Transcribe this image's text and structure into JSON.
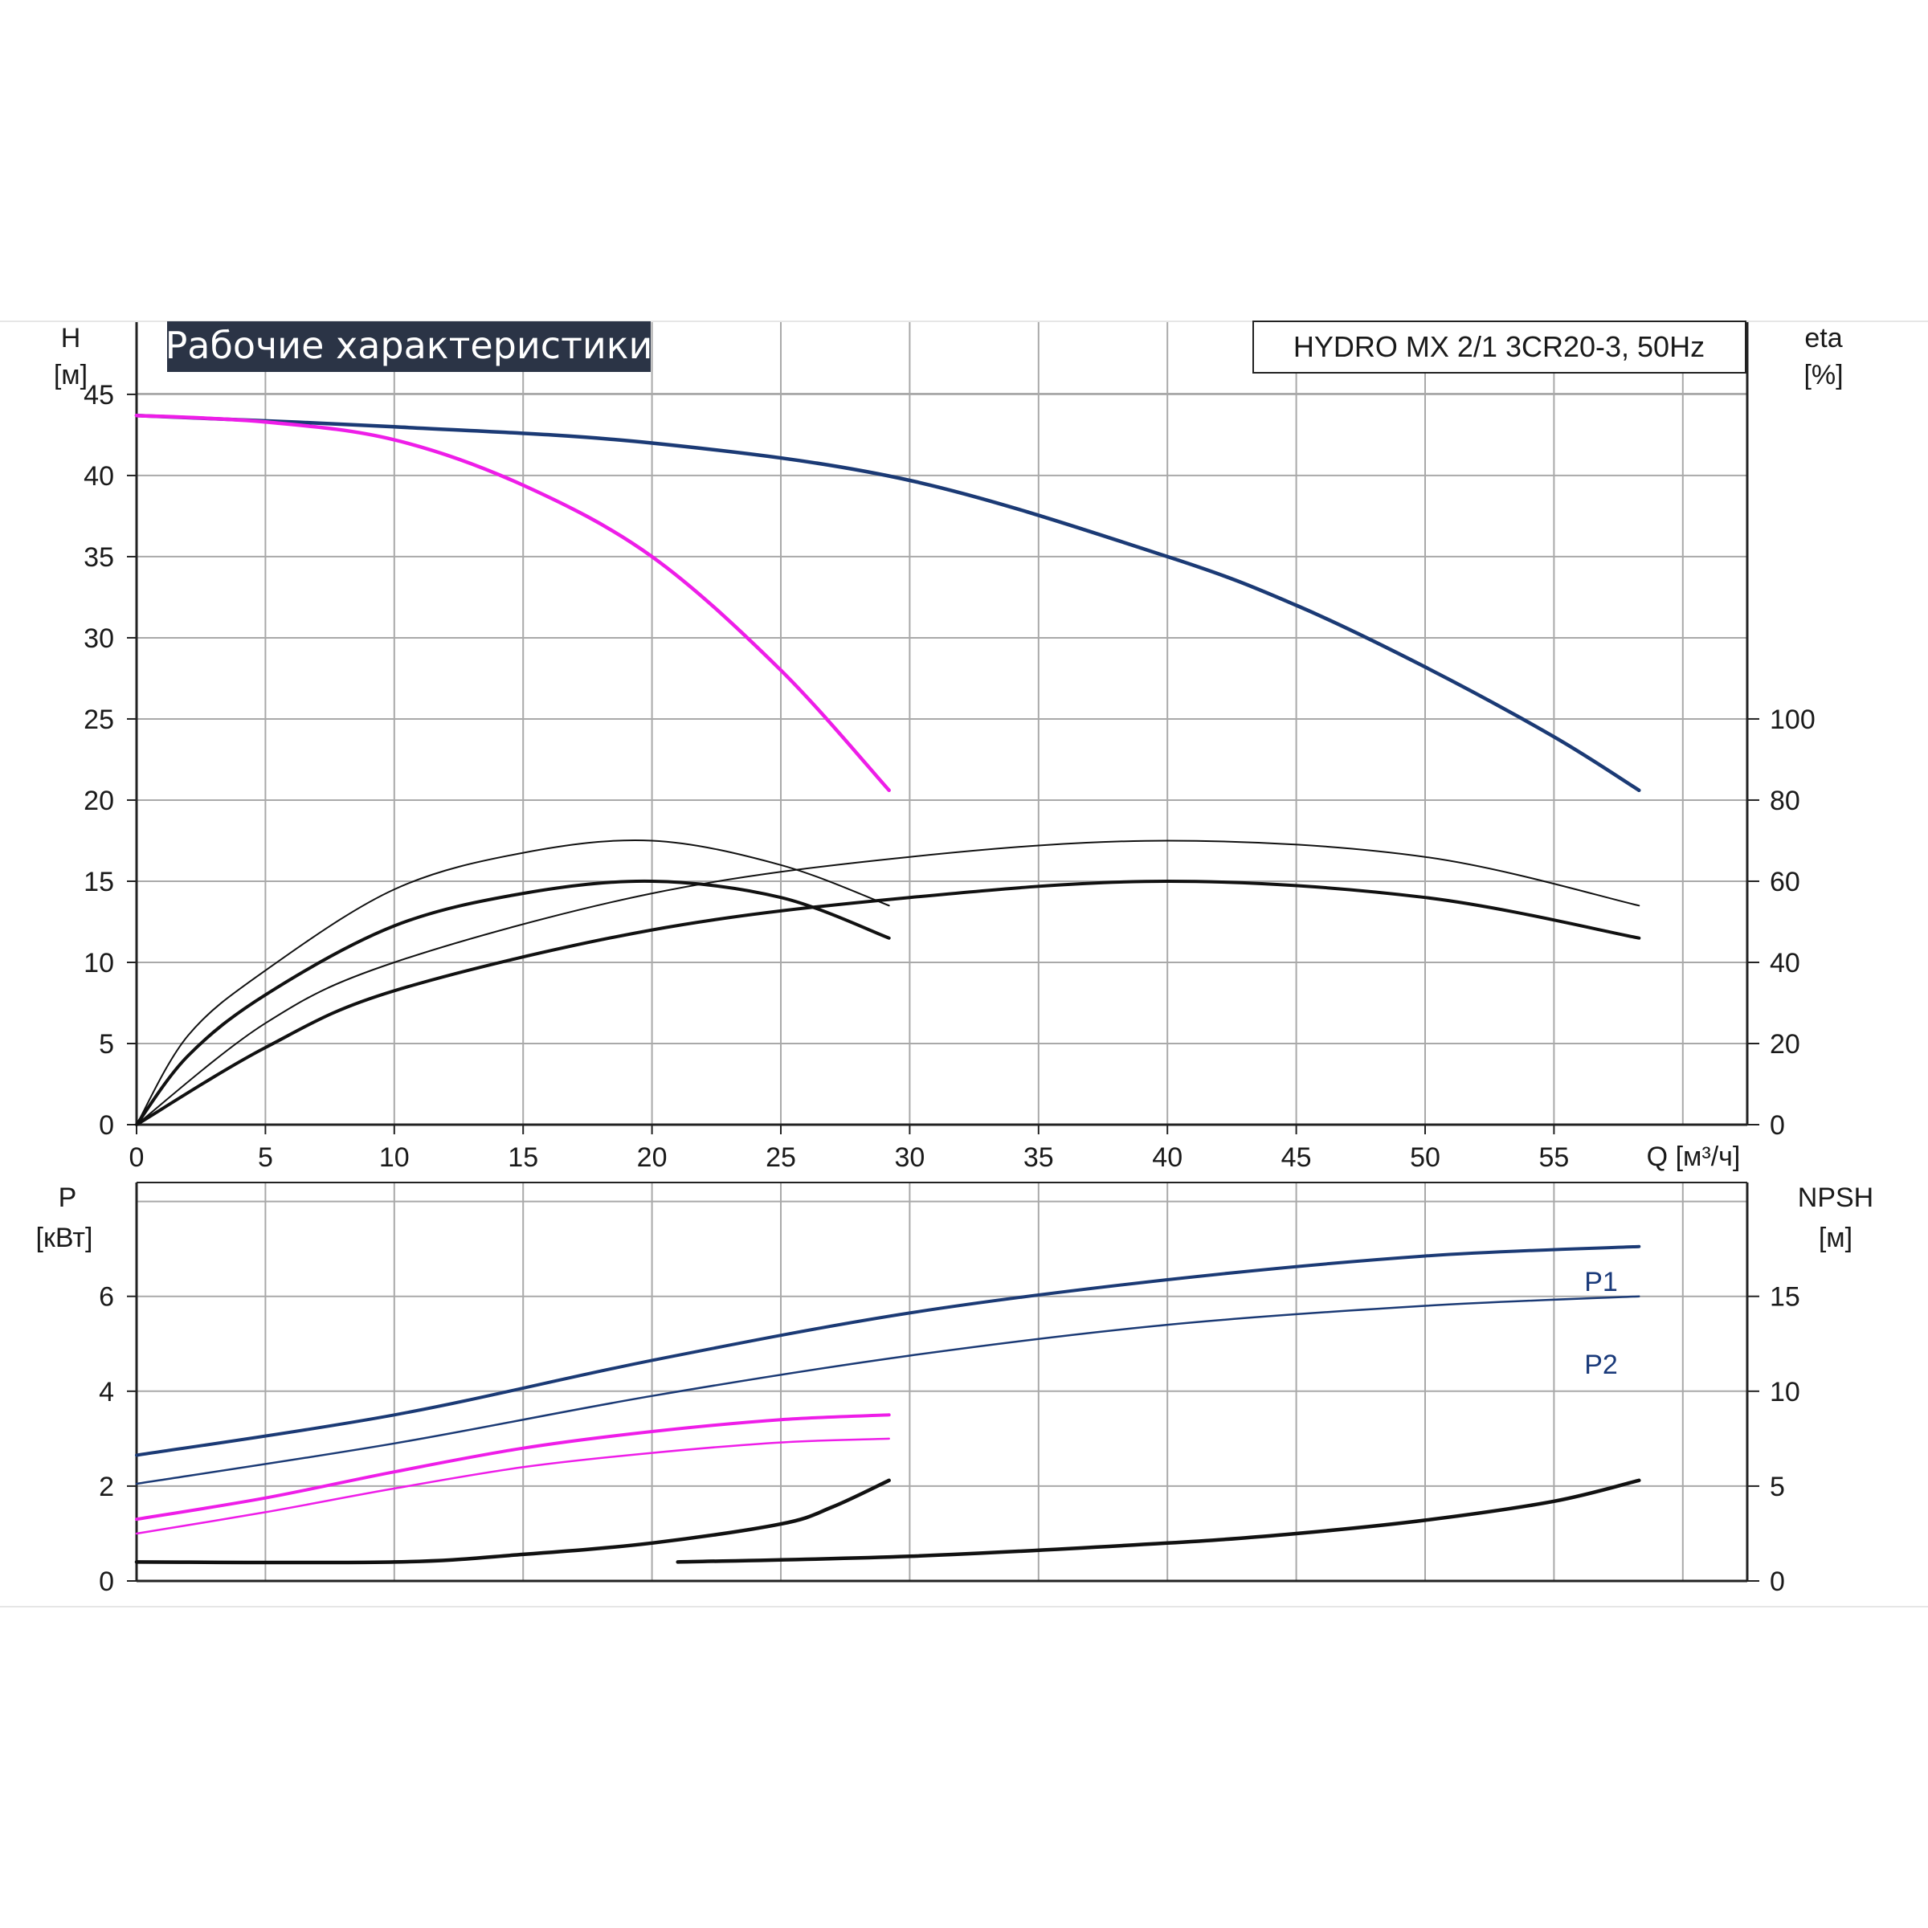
{
  "title": "Рабочие характеристики",
  "model": "HYDRO MX 2/1 3CR20-3, 50Hz",
  "colors": {
    "dark_blue": "#1b3a75",
    "magenta": "#ee1de8",
    "black": "#111111",
    "grid": "#a9a9a9"
  },
  "chart_data": [
    {
      "type": "line",
      "panel": "performance",
      "x_axis": {
        "label": "Q [м³/ч]",
        "range": [
          0,
          62.5
        ],
        "ticks": [
          "0",
          "5",
          "10",
          "15",
          "20",
          "25",
          "30",
          "35",
          "40",
          "45",
          "50",
          "55"
        ]
      },
      "y_left": {
        "label": "H",
        "unit": "[м]",
        "range": [
          0,
          49.5
        ],
        "ticks": [
          "0",
          "5",
          "10",
          "15",
          "20",
          "25",
          "30",
          "35",
          "40",
          "45"
        ]
      },
      "y_right": {
        "label": "eta",
        "unit": "[%]",
        "range": [
          0,
          198
        ],
        "ticks": [
          "0",
          "20",
          "40",
          "60",
          "80",
          "100"
        ]
      },
      "grid": true,
      "series": [
        {
          "axis": "left",
          "color": "dark_blue",
          "width": 4.5,
          "x": [
            0,
            10,
            20,
            30,
            40,
            45,
            50,
            55,
            58.3
          ],
          "y": [
            43.7,
            43.0,
            42.0,
            39.7,
            35.0,
            32.0,
            28.2,
            23.9,
            20.6
          ]
        },
        {
          "axis": "left",
          "color": "magenta",
          "width": 4.5,
          "x": [
            0,
            5,
            10,
            15,
            20,
            25,
            29.2
          ],
          "y": [
            43.7,
            43.3,
            42.2,
            39.4,
            35.0,
            28.0,
            20.6
          ]
        },
        {
          "axis": "right",
          "color": "black",
          "width": 2,
          "x": [
            0,
            2,
            5,
            10,
            15,
            20,
            25,
            29.2
          ],
          "y": [
            0,
            22,
            38,
            58,
            67,
            70,
            64,
            54
          ]
        },
        {
          "axis": "right",
          "color": "black",
          "width": 4,
          "x": [
            0,
            2,
            5,
            10,
            15,
            20,
            25,
            29.2
          ],
          "y": [
            0,
            17,
            32,
            49,
            57,
            60,
            56,
            46
          ]
        },
        {
          "axis": "right",
          "color": "black",
          "width": 2,
          "x": [
            0,
            5,
            10,
            20,
            30,
            40,
            50,
            58.3
          ],
          "y": [
            0,
            25,
            40,
            57,
            66,
            70,
            66,
            54
          ]
        },
        {
          "axis": "right",
          "color": "black",
          "width": 4,
          "x": [
            0,
            5,
            10,
            20,
            30,
            40,
            50,
            58.3
          ],
          "y": [
            0,
            19,
            33,
            48,
            56,
            60,
            56,
            46
          ]
        }
      ]
    },
    {
      "type": "line",
      "panel": "power",
      "y_left": {
        "label": "P",
        "unit": "[кВт]",
        "range": [
          0,
          8.4
        ],
        "ticks": [
          "0",
          "2",
          "4",
          "6"
        ]
      },
      "y_right": {
        "label": "NPSH",
        "unit": "[м]",
        "range": [
          0,
          21
        ],
        "ticks": [
          "0",
          "5",
          "10",
          "15"
        ]
      },
      "grid": true,
      "series": [
        {
          "name": "P1",
          "axis": "left",
          "color": "dark_blue",
          "width": 4,
          "x": [
            0,
            10,
            20,
            30,
            40,
            50,
            58.3
          ],
          "y": [
            2.65,
            3.5,
            4.65,
            5.65,
            6.35,
            6.85,
            7.05
          ]
        },
        {
          "name": "P2",
          "axis": "left",
          "color": "dark_blue",
          "width": 2.5,
          "x": [
            0,
            10,
            20,
            30,
            40,
            50,
            58.3
          ],
          "y": [
            2.05,
            2.9,
            3.9,
            4.75,
            5.4,
            5.8,
            6.0
          ]
        },
        {
          "axis": "left",
          "color": "magenta",
          "width": 4,
          "x": [
            0,
            5,
            10,
            15,
            20,
            25,
            29.2
          ],
          "y": [
            1.3,
            1.75,
            2.3,
            2.8,
            3.15,
            3.4,
            3.5
          ]
        },
        {
          "axis": "left",
          "color": "magenta",
          "width": 2.5,
          "x": [
            0,
            5,
            10,
            15,
            20,
            25,
            29.2
          ],
          "y": [
            1.0,
            1.45,
            1.95,
            2.4,
            2.7,
            2.92,
            3.0
          ]
        },
        {
          "axis": "right",
          "color": "black",
          "width": 4.5,
          "x": [
            0,
            10,
            15,
            20,
            25,
            27,
            29.2
          ],
          "y": [
            1.0,
            1.0,
            1.4,
            2.0,
            3.0,
            3.9,
            5.3
          ]
        },
        {
          "axis": "right",
          "color": "black",
          "width": 4.5,
          "x": [
            21,
            30,
            40,
            45,
            50,
            55,
            58.3
          ],
          "y": [
            1.0,
            1.3,
            2.0,
            2.5,
            3.2,
            4.2,
            5.3
          ]
        }
      ]
    }
  ],
  "series_labels": {
    "p1": "P1",
    "p2": "P2"
  }
}
